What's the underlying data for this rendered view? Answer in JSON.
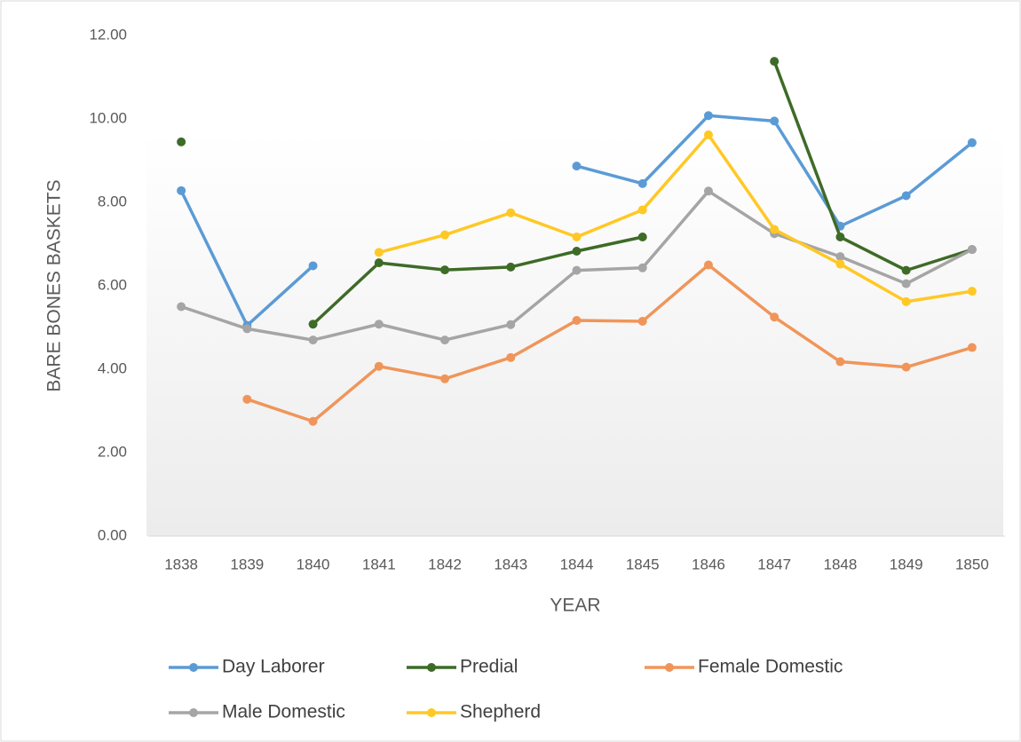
{
  "chart_data": {
    "type": "line",
    "x_label": "YEAR",
    "y_label": "BARE BONES BASKETS",
    "categories": [
      "1838",
      "1839",
      "1840",
      "1841",
      "1842",
      "1843",
      "1844",
      "1845",
      "1846",
      "1847",
      "1848",
      "1849",
      "1850"
    ],
    "ylim": [
      0,
      12
    ],
    "yticks": [
      {
        "value": 0,
        "label": "0.00"
      },
      {
        "value": 2,
        "label": "2.00"
      },
      {
        "value": 4,
        "label": "4.00"
      },
      {
        "value": 6,
        "label": "6.00"
      },
      {
        "value": 8,
        "label": "8.00"
      },
      {
        "value": 10,
        "label": "10.00"
      },
      {
        "value": 12,
        "label": "12.00"
      }
    ],
    "grid": false,
    "legend": "bottom",
    "series": [
      {
        "name": "Day Laborer",
        "color": "#5b9bd5",
        "values": [
          8.28,
          5.05,
          6.48,
          null,
          null,
          null,
          8.87,
          8.45,
          10.08,
          9.95,
          7.43,
          8.16,
          9.43
        ]
      },
      {
        "name": "Predial",
        "color": "#3e6b27",
        "values": [
          9.45,
          null,
          5.08,
          6.55,
          6.38,
          6.45,
          6.83,
          7.17,
          null,
          11.38,
          7.17,
          6.37,
          6.87
        ]
      },
      {
        "name": "Female Domestic",
        "color": "#f0955a",
        "values": [
          null,
          3.28,
          2.75,
          4.07,
          3.77,
          4.28,
          5.17,
          5.15,
          6.5,
          5.25,
          4.18,
          4.05,
          4.52
        ]
      },
      {
        "name": "Male Domestic",
        "color": "#a5a5a5",
        "values": [
          5.5,
          4.97,
          4.7,
          5.08,
          4.7,
          5.07,
          6.37,
          6.43,
          8.27,
          7.25,
          6.7,
          6.05,
          6.87
        ]
      },
      {
        "name": "Shepherd",
        "color": "#ffc824",
        "values": [
          null,
          null,
          null,
          6.8,
          7.22,
          7.75,
          7.17,
          7.82,
          9.62,
          7.35,
          6.52,
          5.62,
          5.87
        ]
      }
    ]
  }
}
